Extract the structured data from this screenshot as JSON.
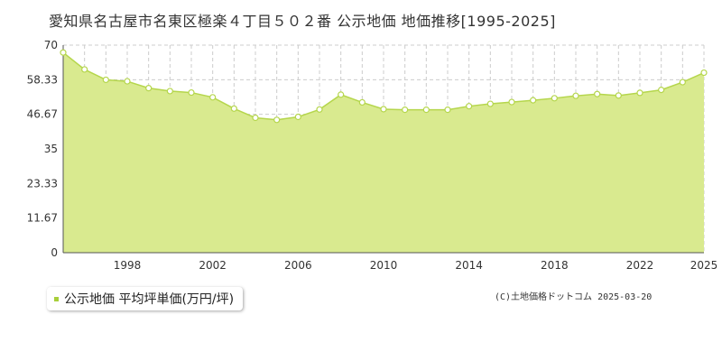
{
  "title": "愛知県名古屋市名東区極楽４丁目５０２番 公示地価 地価推移[1995-2025]",
  "legend": {
    "label": "公示地価 平均坪単価(万円/坪)"
  },
  "copyright": "(C)土地価格ドットコム 2025-03-20",
  "colors": {
    "fill": "#d9ea8f",
    "line": "#b5d64c",
    "marker": "#ffffff",
    "grid": "#cccccc",
    "legend_swatch": "#a8cf3a"
  },
  "chart_data": {
    "type": "area",
    "title": "",
    "xlabel": "",
    "ylabel": "",
    "ylim": [
      0,
      70
    ],
    "xlim": [
      1995,
      2025
    ],
    "y_ticks": [
      "0",
      "11.67",
      "23.33",
      "35",
      "46.67",
      "58.33",
      "70"
    ],
    "x_ticks": [
      "1998",
      "2002",
      "2006",
      "2010",
      "2014",
      "2018",
      "2022",
      "2025"
    ],
    "grid": true,
    "series": [
      {
        "name": "公示地価 平均坪単価(万円/坪)",
        "x": [
          1995,
          1996,
          1997,
          1998,
          1999,
          2000,
          2001,
          2002,
          2003,
          2004,
          2005,
          2006,
          2007,
          2008,
          2009,
          2010,
          2011,
          2012,
          2013,
          2014,
          2015,
          2016,
          2017,
          2018,
          2019,
          2020,
          2021,
          2022,
          2023,
          2024,
          2025
        ],
        "values": [
          67.5,
          61.8,
          58.3,
          57.8,
          55.5,
          54.5,
          54.0,
          52.4,
          48.6,
          45.5,
          44.8,
          45.8,
          48.3,
          53.3,
          50.7,
          48.4,
          48.2,
          48.2,
          48.2,
          49.4,
          50.2,
          50.8,
          51.4,
          52.1,
          52.9,
          53.5,
          53.0,
          53.9,
          54.9,
          57.5,
          60.7
        ]
      }
    ]
  }
}
